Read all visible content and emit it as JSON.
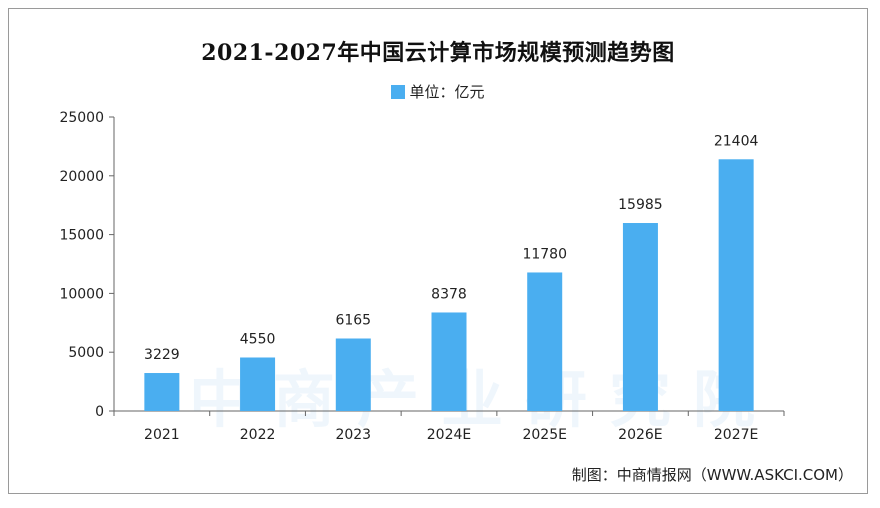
{
  "colors": {
    "bar": "#4aaef0",
    "axis": "#666666",
    "text": "#222222"
  },
  "source": "制图：中商情报网（WWW.ASKCI.COM）",
  "watermark_text": "中商产业研究院",
  "chart_data": {
    "type": "bar",
    "title": "2021-2027年中国云计算市场规模预测趋势图",
    "legend": "单位：亿元",
    "categories": [
      "2021",
      "2022",
      "2023",
      "2024E",
      "2025E",
      "2026E",
      "2027E"
    ],
    "values": [
      3229,
      4550,
      6165,
      8378,
      11780,
      15985,
      21404
    ],
    "value_labels": [
      "3229",
      "4550",
      "6165",
      "8378",
      "11780",
      "15985",
      "21404"
    ],
    "ylim": [
      0,
      25000
    ],
    "yticks": [
      "0",
      "5000",
      "10000",
      "15000",
      "20000",
      "25000"
    ],
    "grid": false,
    "legend_position": "top-center"
  }
}
